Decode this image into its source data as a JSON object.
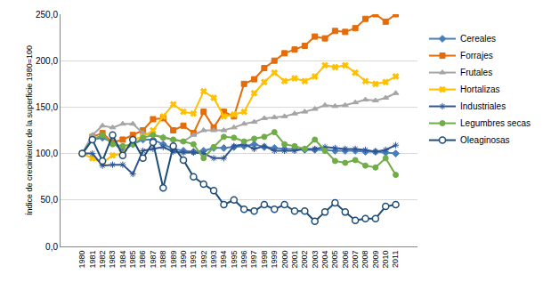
{
  "chart_data": {
    "type": "line",
    "y_label": "Índice de crecimiento de la superficie 1980=100",
    "categories": [
      "1980",
      "1981",
      "1982",
      "1983",
      "1984",
      "1985",
      "1986",
      "1987",
      "1988",
      "1989",
      "1990",
      "1991",
      "1992",
      "1993",
      "1994",
      "1995",
      "1996",
      "1997",
      "1998",
      "1999",
      "2000",
      "2001",
      "2002",
      "2003",
      "2004",
      "2005",
      "2006",
      "2007",
      "2008",
      "2009",
      "2010",
      "2011"
    ],
    "ylim": [
      0,
      250
    ],
    "yticks": [
      {
        "value": 0,
        "label": "0,0"
      },
      {
        "value": 50,
        "label": "50,0"
      },
      {
        "value": 100,
        "label": "100,0"
      },
      {
        "value": 150,
        "label": "150,0"
      },
      {
        "value": 200,
        "label": "200,0"
      },
      {
        "value": 250,
        "label": "250,0"
      }
    ],
    "grid": true,
    "legend": "right",
    "series": [
      {
        "name": "Cereales",
        "color": "#4a7ebb",
        "marker": "diamond",
        "values": [
          100,
          115,
          117,
          112,
          103,
          110,
          115,
          115,
          110,
          105,
          103,
          102,
          103,
          106,
          106,
          107,
          108,
          110,
          107,
          106,
          105,
          105,
          104,
          104,
          104,
          103,
          103,
          103,
          102,
          102,
          101,
          100
        ]
      },
      {
        "name": "Forrajes",
        "color": "#e46c0a",
        "marker": "square",
        "values": [
          100,
          118,
          122,
          112,
          115,
          120,
          125,
          137,
          138,
          125,
          130,
          122,
          145,
          128,
          145,
          140,
          175,
          180,
          192,
          200,
          208,
          212,
          216,
          226,
          224,
          232,
          231,
          235,
          245,
          250,
          242,
          250
        ]
      },
      {
        "name": "Frutales",
        "color": "#a5a5a5",
        "marker": "triangle",
        "values": [
          100,
          120,
          130,
          128,
          132,
          132,
          122,
          120,
          118,
          115,
          113,
          120,
          125,
          125,
          125,
          128,
          132,
          134,
          138,
          139,
          140,
          143,
          145,
          148,
          152,
          151,
          152,
          155,
          158,
          157,
          160,
          165
        ]
      },
      {
        "name": "Hortalizas",
        "color": "#ffc000",
        "marker": "x",
        "values": [
          100,
          95,
          90,
          98,
          100,
          115,
          118,
          125,
          140,
          153,
          145,
          143,
          167,
          160,
          140,
          142,
          145,
          165,
          177,
          187,
          178,
          181,
          178,
          183,
          195,
          193,
          195,
          187,
          178,
          175,
          177,
          183
        ]
      },
      {
        "name": "Industriales",
        "color": "#2f5597",
        "marker": "asterisk",
        "values": [
          100,
          100,
          87,
          88,
          88,
          78,
          103,
          105,
          107,
          102,
          101,
          101,
          100,
          95,
          95,
          108,
          110,
          105,
          108,
          103,
          103,
          103,
          105,
          105,
          107,
          106,
          105,
          105,
          104,
          102,
          104,
          109
        ]
      },
      {
        "name": "Legumbres secas",
        "color": "#70ad47",
        "marker": "circle",
        "values": [
          100,
          115,
          120,
          110,
          108,
          110,
          117,
          120,
          117,
          115,
          113,
          110,
          95,
          107,
          118,
          117,
          113,
          116,
          118,
          123,
          110,
          108,
          105,
          115,
          103,
          92,
          90,
          93,
          87,
          85,
          95,
          77
        ]
      },
      {
        "name": "Oleaginosas",
        "color": "#1f4e79",
        "marker": "open_circle",
        "values": [
          100,
          115,
          92,
          120,
          98,
          115,
          95,
          112,
          63,
          108,
          93,
          75,
          67,
          60,
          45,
          50,
          40,
          38,
          45,
          40,
          45,
          38,
          38,
          27,
          37,
          47,
          37,
          28,
          30,
          30,
          43,
          45
        ]
      }
    ]
  }
}
